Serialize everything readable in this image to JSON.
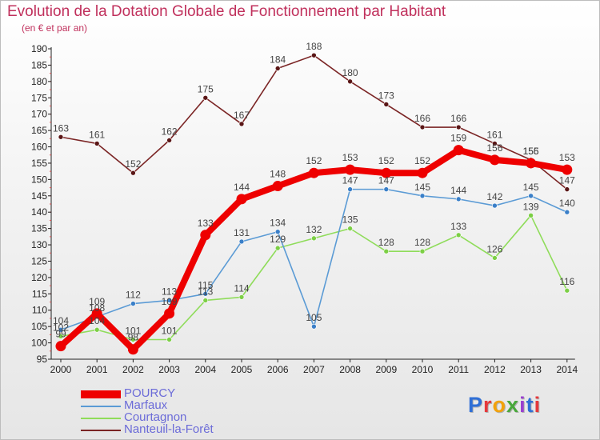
{
  "title": "Evolution de la Dotation Globale de Fonctionnement par Habitant",
  "subtitle": "(en € et par an)",
  "logo": {
    "text": "Proxiti",
    "colors": [
      "#2f6fd6",
      "#e5383b",
      "#f2a20c",
      "#49a83b",
      "#9a3fd0",
      "#2f6fd6",
      "#e5383b"
    ]
  },
  "chart_data": {
    "type": "line",
    "x": [
      "2000",
      "2001",
      "2002",
      "2003",
      "2004",
      "2005",
      "2006",
      "2007",
      "2008",
      "2009",
      "2010",
      "2011",
      "2012",
      "2013",
      "2014"
    ],
    "ylim": [
      95,
      190
    ],
    "yticks": [
      95,
      100,
      105,
      110,
      115,
      120,
      125,
      130,
      135,
      140,
      145,
      150,
      155,
      160,
      165,
      170,
      175,
      180,
      185,
      190
    ],
    "grid": false,
    "legend_position": "bottom-left",
    "series": [
      {
        "name": "POURCY",
        "color": "#ee0000",
        "values": [
          99,
          109,
          98,
          109,
          133,
          144,
          148,
          152,
          153,
          152,
          152,
          159,
          156,
          155,
          153
        ]
      },
      {
        "name": "Marfaux",
        "color": "#5b9bd5",
        "values": [
          104,
          108,
          112,
          113,
          115,
          131,
          134,
          105,
          147,
          147,
          145,
          144,
          142,
          145,
          140
        ]
      },
      {
        "name": "Courtagnon",
        "color": "#8fdc5a",
        "values": [
          102,
          104,
          101,
          101,
          113,
          114,
          129,
          132,
          135,
          128,
          128,
          133,
          126,
          139,
          116
        ]
      },
      {
        "name": "Nanteuil-la-Forêt",
        "color": "#7b2525",
        "values": [
          163,
          161,
          152,
          162,
          175,
          167,
          184,
          188,
          180,
          173,
          166,
          166,
          161,
          156,
          147
        ]
      }
    ]
  }
}
